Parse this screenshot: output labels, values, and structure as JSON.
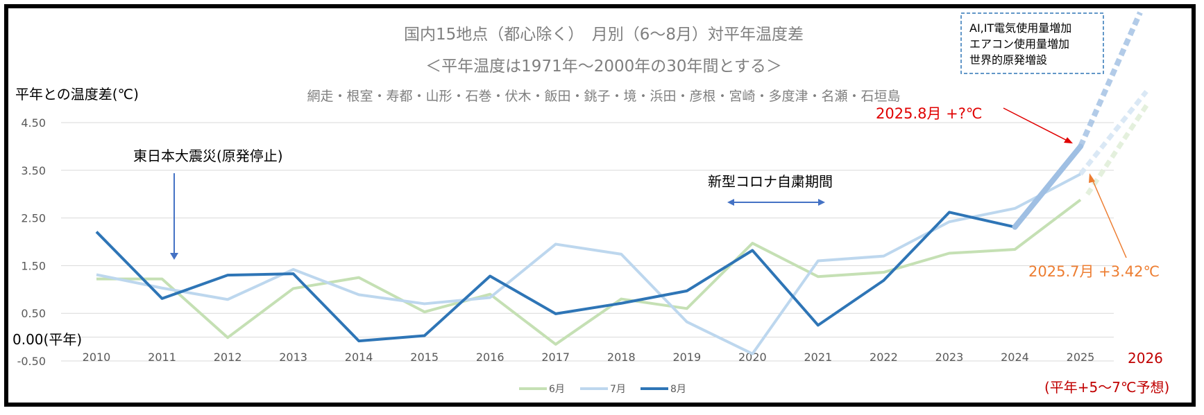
{
  "chart_data": {
    "type": "line",
    "title": "国内15地点（都心除く）　月別（6〜8月）対平年温度差",
    "subtitle": "＜平年温度は1971年〜2000年の30年間とする＞",
    "stations": "網走・根室・寿都・山形・石巻・伏木・飯田・銚子・境・浜田・彦根・宮崎・多度津・名瀬・石垣島",
    "ylabel": "平年との温度差(℃)",
    "zero_label": "0.00(平年)",
    "ylim": [
      -0.5,
      4.5
    ],
    "y_ticks": [
      "4.50",
      "3.50",
      "2.50",
      "1.50",
      "0.50",
      "-0.50"
    ],
    "categories": [
      "2010",
      "2011",
      "2012",
      "2013",
      "2014",
      "2015",
      "2016",
      "2017",
      "2018",
      "2019",
      "2020",
      "2021",
      "2022",
      "2023",
      "2024",
      "2025"
    ],
    "series": [
      {
        "name": "6月",
        "color": "#c5e0b4",
        "values": [
          1.22,
          1.22,
          -0.01,
          1.02,
          1.25,
          0.53,
          0.9,
          -0.15,
          0.8,
          0.6,
          1.97,
          1.27,
          1.36,
          1.76,
          1.84,
          2.88
        ]
      },
      {
        "name": "7月",
        "color": "#bdd7ee",
        "values": [
          1.31,
          1.03,
          0.79,
          1.42,
          0.89,
          0.7,
          0.83,
          1.95,
          1.74,
          0.32,
          -0.35,
          1.6,
          1.7,
          2.42,
          2.7,
          3.42
        ]
      },
      {
        "name": "8月",
        "color": "#2e75b6",
        "values": [
          2.21,
          0.81,
          1.3,
          1.33,
          -0.08,
          0.03,
          1.28,
          0.49,
          0.71,
          0.97,
          1.82,
          0.25,
          1.19,
          2.62,
          2.31,
          null
        ]
      }
    ],
    "grid": true,
    "legend": "bottom",
    "annotations": {
      "earthquake": "東日本大震災(原発停止)",
      "covid": "新型コロナ自粛期間",
      "box_lines": [
        "AI,IT電気使用量増加",
        "エアコン使用量増加",
        "世界的原発増設"
      ],
      "aug2025": "2025.8月 +?℃",
      "jul2025": "2025.7月 +3.42℃",
      "year2026": "2026",
      "forecast": "(平年+5〜7℃予想)",
      "aug2025_projected_value": 4.0
    }
  }
}
